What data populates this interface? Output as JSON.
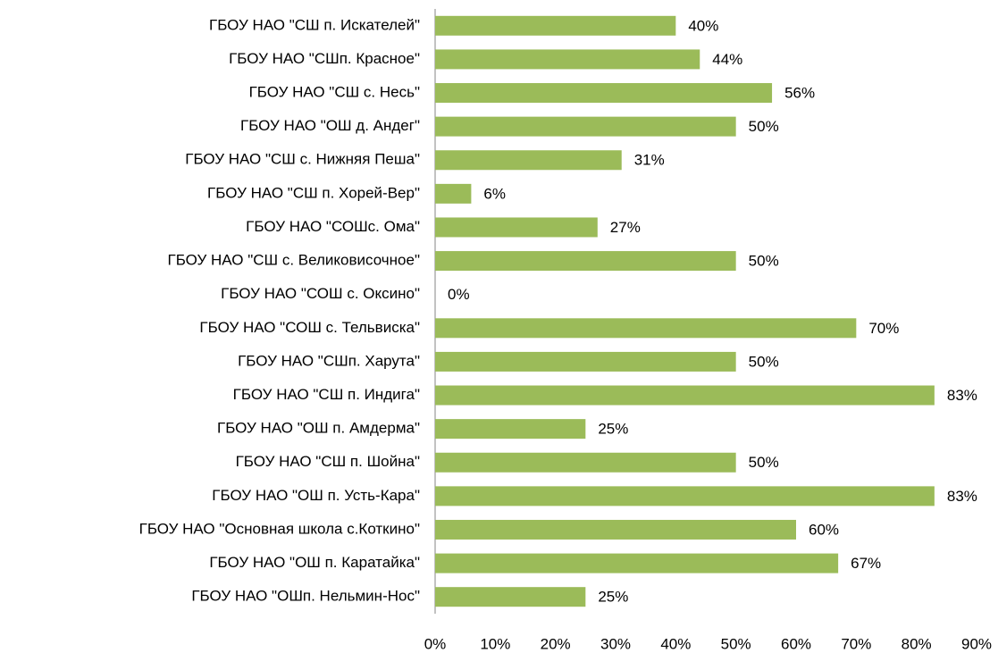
{
  "chart_data": {
    "type": "barh",
    "categories": [
      "ГБОУ НАО \"СШ п. Искателей\"",
      "ГБОУ НАО \"СШп. Красное\"",
      "ГБОУ НАО \"СШ с. Несь\"",
      "ГБОУ НАО \"ОШ д. Андег\"",
      "ГБОУ НАО \"СШ с. Нижняя Пеша\"",
      "ГБОУ НАО \"СШ п. Хорей-Вер\"",
      "ГБОУ НАО \"СОШс. Ома\"",
      "ГБОУ НАО \"СШ с. Великовисочное\"",
      "ГБОУ НАО \"СОШ с. Оксино\"",
      "ГБОУ НАО \"СОШ с. Тельвиска\"",
      "ГБОУ НАО \"СШп. Харута\"",
      "ГБОУ НАО \"СШ п. Индига\"",
      "ГБОУ НАО \"ОШ п. Амдерма\"",
      "ГБОУ НАО \"СШ п. Шойна\"",
      "ГБОУ НАО \"ОШ п. Усть-Кара\"",
      "ГБОУ НАО \"Основная школа с.Коткино\"",
      "ГБОУ НАО \"ОШ п. Каратайка\"",
      "ГБОУ НАО \"ОШп. Нельмин-Нос\""
    ],
    "values": [
      40,
      44,
      56,
      50,
      31,
      6,
      27,
      50,
      0,
      70,
      50,
      83,
      25,
      50,
      83,
      60,
      67,
      25
    ],
    "value_labels": [
      "40%",
      "44%",
      "56%",
      "50%",
      "31%",
      "6%",
      "27%",
      "50%",
      "0%",
      "70%",
      "50%",
      "83%",
      "25%",
      "50%",
      "83%",
      "60%",
      "67%",
      "25%"
    ],
    "color": "#9bbb59",
    "xlim": [
      0,
      90
    ],
    "xticks": [
      {
        "value": 0,
        "label": "0%"
      },
      {
        "value": 10,
        "label": "10%"
      },
      {
        "value": 20,
        "label": "20%"
      },
      {
        "value": 30,
        "label": "30%"
      },
      {
        "value": 40,
        "label": "40%"
      },
      {
        "value": 50,
        "label": "50%"
      },
      {
        "value": 60,
        "label": "60%"
      },
      {
        "value": 70,
        "label": "70%"
      },
      {
        "value": 80,
        "label": "80%"
      },
      {
        "value": 90,
        "label": "90%"
      }
    ],
    "grid": false
  }
}
